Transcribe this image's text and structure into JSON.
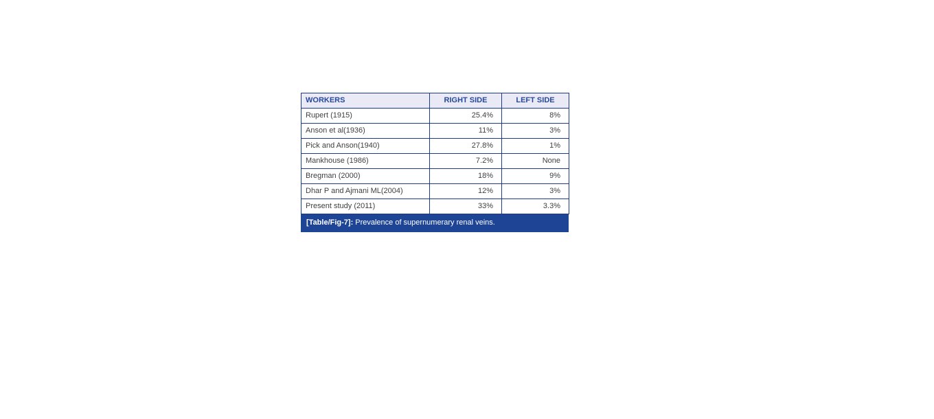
{
  "table": {
    "columns": {
      "workers": "WORKERS",
      "right_side": "RIGHT SIDE",
      "left_side": "LEFT SIDE"
    },
    "rows": [
      {
        "worker": "Rupert (1915)",
        "right": "25.4%",
        "left": "8%"
      },
      {
        "worker": "Anson et al(1936)",
        "right": "11%",
        "left": "3%"
      },
      {
        "worker": "Pick and Anson(1940)",
        "right": "27.8%",
        "left": "1%"
      },
      {
        "worker": "Mankhouse (1986)",
        "right": "7.2%",
        "left": "None"
      },
      {
        "worker": "Bregman (2000)",
        "right": "18%",
        "left": "9%"
      },
      {
        "worker": "Dhar P and Ajmani ML(2004)",
        "right": "12%",
        "left": "3%"
      },
      {
        "worker": "Present study (2011)",
        "right": "33%",
        "left": "3.3%"
      }
    ]
  },
  "caption": {
    "label": "[Table/Fig-7]:",
    "text": "Prevalence of supernumerary renal veins."
  },
  "colors": {
    "border": "#1c3a8a",
    "header_bg": "#e9eaf5",
    "header_text": "#27489d",
    "caption_bg": "#1e4496",
    "caption_text": "#ffffff"
  }
}
